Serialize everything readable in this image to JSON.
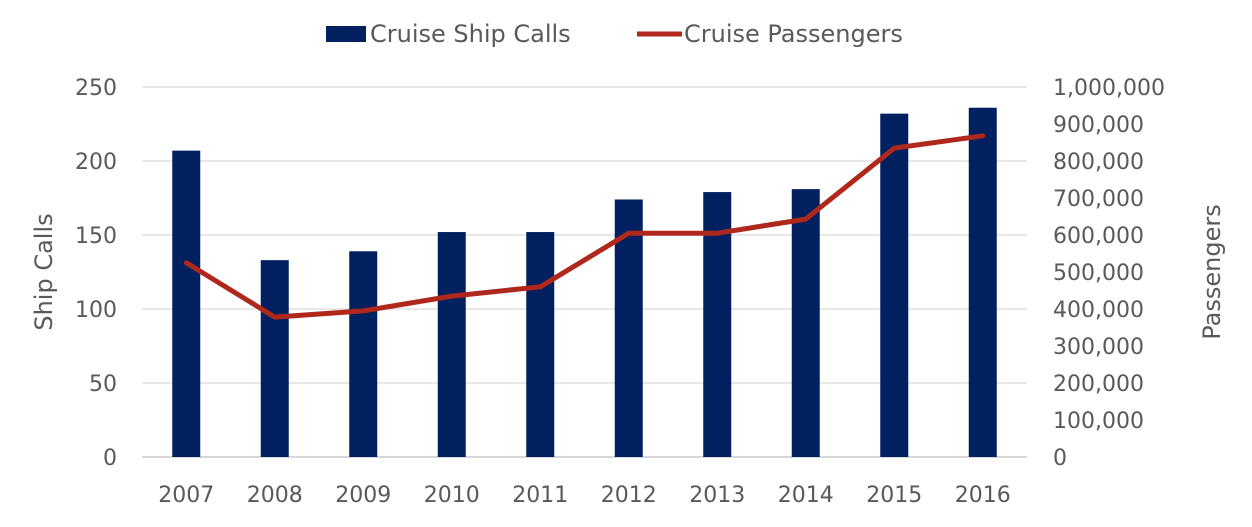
{
  "chart_data": {
    "type": "bar+line",
    "categories": [
      "2007",
      "2008",
      "2009",
      "2010",
      "2011",
      "2012",
      "2013",
      "2014",
      "2015",
      "2016"
    ],
    "series": [
      {
        "name": "Cruise Ship Calls",
        "type": "bar",
        "axis": "left",
        "color": "#002060",
        "values": [
          207,
          133,
          139,
          152,
          152,
          174,
          179,
          181,
          232,
          236
        ]
      },
      {
        "name": "Cruise Passengers",
        "type": "line",
        "axis": "right",
        "color": "#b0281c",
        "values": [
          525000,
          378000,
          395000,
          435000,
          460000,
          605000,
          605000,
          643000,
          835000,
          868000
        ]
      }
    ],
    "left_axis": {
      "label": "Ship Calls",
      "range": [
        0,
        250
      ],
      "ticks": [
        "0",
        "50",
        "100",
        "150",
        "200",
        "250"
      ]
    },
    "right_axis": {
      "label": "Passengers",
      "range": [
        0,
        1000000
      ],
      "ticks": [
        "0",
        "100,000",
        "200,000",
        "300,000",
        "400,000",
        "500,000",
        "600,000",
        "700,000",
        "800,000",
        "900,000",
        "1,000,000"
      ]
    },
    "grid": true,
    "legend_position": "top-center"
  }
}
